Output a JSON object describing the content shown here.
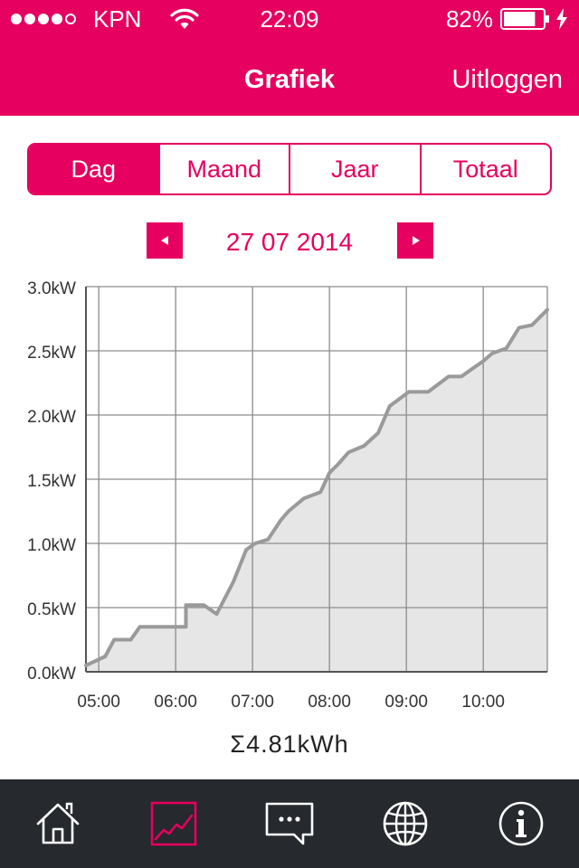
{
  "status_bar": {
    "carrier": "KPN",
    "signal_bars_filled": 4,
    "signal_bars_total": 5,
    "time": "22:09",
    "battery_percent": "82%",
    "battery_level": 0.82,
    "icons": [
      "wifi-icon",
      "battery-icon",
      "charging-bolt-icon"
    ]
  },
  "nav": {
    "title": "Grafiek",
    "logout_label": "Uitloggen"
  },
  "segments": {
    "items": [
      {
        "label": "Dag",
        "active": true
      },
      {
        "label": "Maand",
        "active": false
      },
      {
        "label": "Jaar",
        "active": false
      },
      {
        "label": "Totaal",
        "active": false
      }
    ]
  },
  "date_nav": {
    "date": "27 07 2014",
    "prev_icon": "arrow-left-icon",
    "next_icon": "arrow-right-icon"
  },
  "chart_data": {
    "type": "area",
    "title": "",
    "xlabel": "",
    "ylabel": "",
    "x_tick_labels": [
      "05:00",
      "06:00",
      "07:00",
      "08:00",
      "09:00",
      "10:00"
    ],
    "y_tick_labels": [
      "0.0kW",
      "0.5kW",
      "1.0kW",
      "1.5kW",
      "2.0kW",
      "2.5kW",
      "3.0kW"
    ],
    "xlim": [
      "04:50",
      "10:50"
    ],
    "ylim": [
      0,
      3.0
    ],
    "grid": true,
    "colors": {
      "line": "#9a9a9a",
      "fill": "#e6e6e6",
      "grid": "#8c8c8c"
    },
    "series": [
      {
        "x": [
          "04:50",
          "05:05",
          "05:12",
          "05:25",
          "05:32",
          "05:50",
          "06:08",
          "06:08",
          "06:22",
          "06:32",
          "06:45",
          "06:55",
          "07:02",
          "07:12",
          "07:22",
          "07:28",
          "07:40",
          "07:53",
          "08:00",
          "08:07",
          "08:15",
          "08:27",
          "08:38",
          "08:47",
          "09:02",
          "09:07",
          "09:17",
          "09:33",
          "09:43",
          "09:50",
          "10:00",
          "10:07",
          "10:18",
          "10:28",
          "10:38",
          "10:50"
        ],
        "values": [
          0.05,
          0.12,
          0.25,
          0.25,
          0.35,
          0.35,
          0.35,
          0.52,
          0.52,
          0.45,
          0.7,
          0.95,
          1.0,
          1.03,
          1.18,
          1.25,
          1.35,
          1.4,
          1.55,
          1.62,
          1.71,
          1.76,
          1.86,
          2.07,
          2.18,
          2.18,
          2.18,
          2.3,
          2.3,
          2.35,
          2.42,
          2.48,
          2.52,
          2.68,
          2.7,
          2.82
        ]
      }
    ]
  },
  "total": {
    "label": "Σ4.81kWh"
  },
  "tabbar": {
    "items": [
      {
        "icon": "home-icon",
        "active": false
      },
      {
        "icon": "chart-icon",
        "active": true
      },
      {
        "icon": "chat-icon",
        "active": false
      },
      {
        "icon": "globe-icon",
        "active": false
      },
      {
        "icon": "info-icon",
        "active": false
      }
    ]
  }
}
